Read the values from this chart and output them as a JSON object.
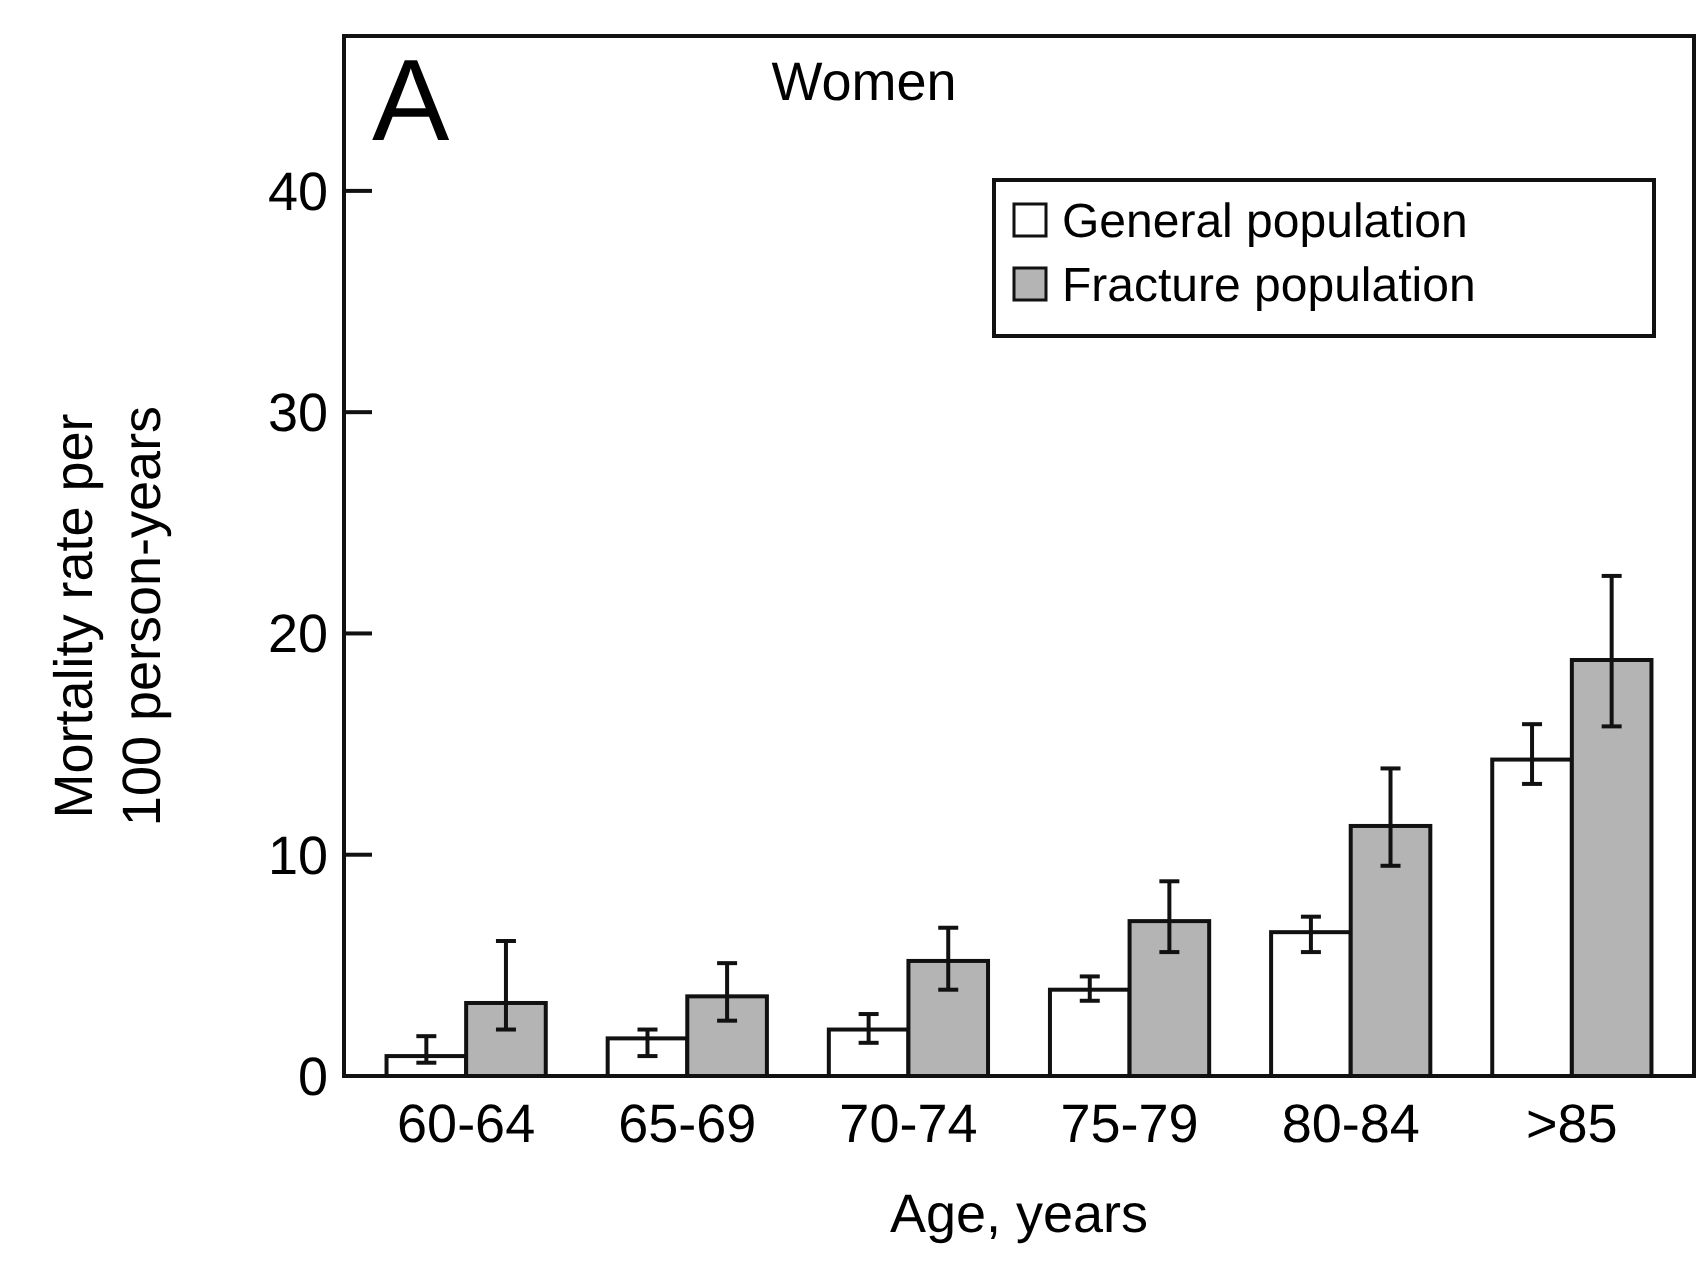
{
  "chart_data": {
    "type": "bar",
    "title": "Women",
    "annotations": [
      "A"
    ],
    "xlabel": "Age, years",
    "ylabel": "Mortality rate per\n100 person-years",
    "categories": [
      "60-64",
      "65-69",
      "70-74",
      "75-79",
      "80-84",
      ">85"
    ],
    "series": [
      {
        "name": "General population",
        "color": "#ffffff",
        "values": [
          0.9,
          1.7,
          2.1,
          3.9,
          6.5,
          14.3
        ],
        "errors": [
          [
            0.6,
            1.8
          ],
          [
            0.9,
            2.1
          ],
          [
            1.5,
            2.8
          ],
          [
            3.4,
            4.5
          ],
          [
            5.6,
            7.2
          ],
          [
            13.2,
            15.9
          ]
        ]
      },
      {
        "name": "Fracture population",
        "color": "#b4b4b4",
        "values": [
          3.3,
          3.6,
          5.2,
          7.0,
          11.3,
          18.8
        ],
        "errors": [
          [
            2.1,
            6.1
          ],
          [
            2.5,
            5.1
          ],
          [
            3.9,
            6.7
          ],
          [
            5.6,
            8.8
          ],
          [
            9.5,
            13.9
          ],
          [
            15.8,
            22.6
          ]
        ]
      }
    ],
    "ylim": [
      0,
      47
    ],
    "yticks": [
      0,
      10,
      20,
      30,
      40
    ],
    "grid": false,
    "legend": "top right"
  }
}
